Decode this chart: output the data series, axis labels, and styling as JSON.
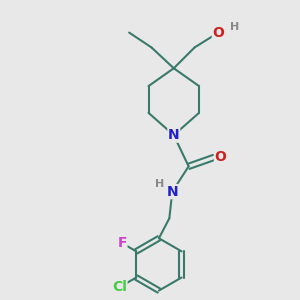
{
  "bg_color": "#e8e8e8",
  "bond_color": "#3a7a6a",
  "atom_colors": {
    "N": "#2020cc",
    "O": "#cc2020",
    "F": "#cc44cc",
    "Cl": "#44cc44",
    "H": "#888888"
  },
  "bond_width": 1.5,
  "font_size": 9
}
